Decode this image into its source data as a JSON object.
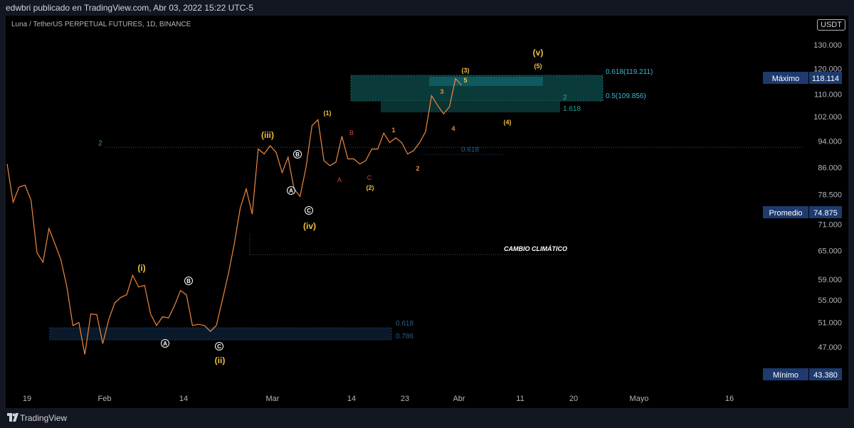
{
  "header": {
    "publisher_text": "edwbri publicado en TradingView.com, Abr 03, 2022 15:22 UTC-5"
  },
  "symbol": {
    "title": "Luna / TetherUS PERPETUAL FUTURES, 1D, BINANCE",
    "currency": "USDT"
  },
  "footer": {
    "brand": "TradingView"
  },
  "colors": {
    "background": "#000000",
    "price_line": "#f0883e",
    "zone": "#0b3a3a",
    "zone_low": "#0a1a2a",
    "level_line": "#2c5f8a",
    "label_box": "#1e3a6e"
  },
  "chart_data": {
    "type": "line",
    "series": [
      {
        "values": [
          [
            0,
            87.0
          ],
          [
            1,
            76.5
          ],
          [
            2,
            80.5
          ],
          [
            3,
            81.0
          ],
          [
            4,
            77.0
          ],
          [
            5,
            64.5
          ],
          [
            6,
            62.5
          ],
          [
            7,
            70.0
          ],
          [
            8,
            66.5
          ],
          [
            9,
            63.0
          ],
          [
            10,
            57.5
          ],
          [
            11,
            50.5
          ],
          [
            12,
            51.0
          ],
          [
            13,
            45.8
          ],
          [
            14,
            52.5
          ],
          [
            15,
            52.4
          ],
          [
            16,
            47.5
          ],
          [
            17,
            51.5
          ],
          [
            18,
            54.5
          ],
          [
            19,
            55.5
          ],
          [
            20,
            56.0
          ],
          [
            21,
            59.8
          ],
          [
            22,
            57.5
          ],
          [
            23,
            57.8
          ],
          [
            24,
            52.5
          ],
          [
            25,
            50.5
          ],
          [
            26,
            52.0
          ],
          [
            27,
            51.8
          ],
          [
            28,
            54.0
          ],
          [
            29,
            56.8
          ],
          [
            30,
            56.0
          ],
          [
            31,
            50.5
          ],
          [
            32,
            50.7
          ],
          [
            33,
            50.5
          ],
          [
            34,
            49.5
          ],
          [
            35,
            50.5
          ],
          [
            36,
            55.0
          ],
          [
            37,
            60.0
          ],
          [
            38,
            66.5
          ],
          [
            39,
            75.0
          ],
          [
            40,
            80.0
          ],
          [
            41,
            73.5
          ],
          [
            42,
            91.5
          ],
          [
            43,
            90.0
          ],
          [
            44,
            92.5
          ],
          [
            45,
            90.5
          ],
          [
            46,
            84.5
          ],
          [
            47,
            89.0
          ],
          [
            48,
            80.0
          ],
          [
            49,
            78.0
          ],
          [
            50,
            86.0
          ],
          [
            51,
            99.0
          ],
          [
            52,
            101.0
          ],
          [
            53,
            88.0
          ],
          [
            54,
            86.5
          ],
          [
            55,
            87.5
          ],
          [
            56,
            95.5
          ],
          [
            57,
            88.5
          ],
          [
            58,
            88.5
          ],
          [
            59,
            87.0
          ],
          [
            60,
            88.0
          ],
          [
            61,
            91.5
          ],
          [
            62,
            91.5
          ],
          [
            63,
            96.5
          ],
          [
            64,
            93.5
          ],
          [
            65,
            95.0
          ],
          [
            66,
            93.5
          ],
          [
            67,
            90.0
          ],
          [
            68,
            91.0
          ],
          [
            69,
            93.5
          ],
          [
            70,
            97.0
          ],
          [
            71,
            109.5
          ],
          [
            72,
            106.0
          ],
          [
            73,
            103.0
          ],
          [
            74,
            105.5
          ],
          [
            75,
            116.0
          ],
          [
            76,
            113.5
          ]
        ]
      }
    ],
    "x_ticks": [
      "19",
      "Feb",
      "14",
      "Mar",
      "14",
      "23",
      "Abr",
      "11",
      "20",
      "Mayo",
      "16"
    ],
    "y_ticks": [
      "130.000",
      "120.000",
      "110.000",
      "102.000",
      "94.000",
      "86.000",
      "78.500",
      "71.000",
      "65.000",
      "59.000",
      "55.000",
      "51.000",
      "47.000"
    ],
    "y_scale": "log",
    "ylim": [
      40.5,
      142.0
    ],
    "grid": false,
    "zones": [
      {
        "upper": "0.618(119.211)",
        "lower": "0.5(109.856)",
        "extension": "1.618",
        "count": "2"
      },
      {
        "upper": "0.618",
        "lower": "0.786"
      }
    ],
    "levels": [
      {
        "label": "2",
        "fib_label": "0.618",
        "price": 92.0
      }
    ],
    "annotations": {
      "wave_labels": [
        "(v)",
        "(5)",
        "(3)",
        "5",
        "3",
        "4",
        "(4)",
        "(1)",
        "B",
        "1",
        "A",
        "C",
        "(2)",
        "2",
        "(iii)",
        "(iv)",
        "(i)",
        "(ii)"
      ],
      "circled_labels": [
        "B",
        "A",
        "C",
        "B",
        "A",
        "C"
      ],
      "climate_note": "CAMBIO CLIMÁTICO"
    },
    "stats": [
      {
        "label": "Máximo",
        "value": "118.114"
      },
      {
        "label": "Promedio",
        "value": "74.875"
      },
      {
        "label": "Mínimo",
        "value": "43.380"
      }
    ]
  }
}
